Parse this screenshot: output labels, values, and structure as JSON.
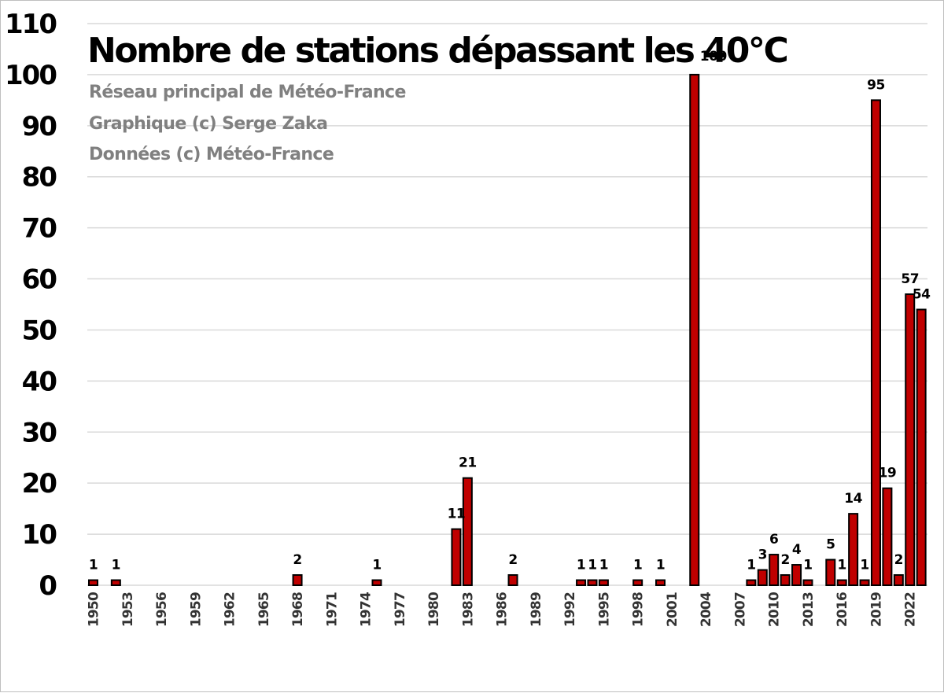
{
  "chart_data": {
    "type": "bar",
    "title": "Nombre de stations dépassant les 40°C",
    "subtitles": [
      "Réseau principal de Météo-France",
      "Graphique (c) Serge Zaka",
      "Données (c) Météo-France"
    ],
    "xlabel": "",
    "ylabel": "",
    "ylim": [
      0,
      110
    ],
    "yticks": [
      0,
      10,
      20,
      30,
      40,
      50,
      60,
      70,
      80,
      90,
      100,
      110
    ],
    "xrange": [
      1950,
      2023
    ],
    "xtick_labels": [
      "1950",
      "1953",
      "1956",
      "1959",
      "1962",
      "1965",
      "1968",
      "1971",
      "1974",
      "1977",
      "1980",
      "1983",
      "1986",
      "1989",
      "1992",
      "1995",
      "1998",
      "2001",
      "2004",
      "2007",
      "2010",
      "2013",
      "2016",
      "2019",
      "2022"
    ],
    "grid": true,
    "bar_color": "#c00000",
    "bar_edge_color": "#000000",
    "data": [
      {
        "x": 1950,
        "y": 1
      },
      {
        "x": 1952,
        "y": 1
      },
      {
        "x": 1968,
        "y": 2
      },
      {
        "x": 1975,
        "y": 1
      },
      {
        "x": 1982,
        "y": 11
      },
      {
        "x": 1983,
        "y": 21
      },
      {
        "x": 1987,
        "y": 2
      },
      {
        "x": 1993,
        "y": 1
      },
      {
        "x": 1994,
        "y": 1
      },
      {
        "x": 1995,
        "y": 1
      },
      {
        "x": 1998,
        "y": 1
      },
      {
        "x": 2000,
        "y": 1
      },
      {
        "x": 2003,
        "y": 100
      },
      {
        "x": 2008,
        "y": 1
      },
      {
        "x": 2009,
        "y": 3
      },
      {
        "x": 2010,
        "y": 6
      },
      {
        "x": 2011,
        "y": 2
      },
      {
        "x": 2012,
        "y": 4
      },
      {
        "x": 2013,
        "y": 1
      },
      {
        "x": 2015,
        "y": 5
      },
      {
        "x": 2016,
        "y": 1
      },
      {
        "x": 2017,
        "y": 14
      },
      {
        "x": 2018,
        "y": 1
      },
      {
        "x": 2019,
        "y": 95
      },
      {
        "x": 2020,
        "y": 19
      },
      {
        "x": 2021,
        "y": 2
      },
      {
        "x": 2022,
        "y": 57
      },
      {
        "x": 2023,
        "y": 54
      }
    ]
  }
}
